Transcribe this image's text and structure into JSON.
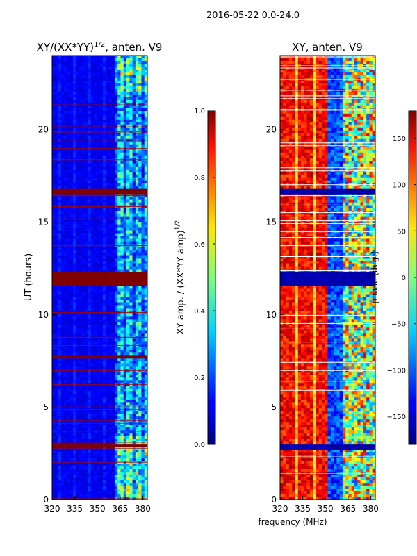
{
  "suptitle": "2016-05-22 0.0-24.0",
  "chart_data": [
    {
      "type": "heatmap",
      "title_main": "XY/(XX*YY)",
      "title_exp": "1/2",
      "title_suffix": ", anten. V9",
      "xlabel": "",
      "ylabel": "UT (hours)",
      "xlim": [
        320,
        383
      ],
      "ylim": [
        0,
        24
      ],
      "xticks": [
        320,
        335,
        350,
        365,
        380
      ],
      "yticks": [
        0,
        5,
        10,
        15,
        20
      ],
      "colorbar": {
        "label_main": "XY amp. / (XX*YY amp)",
        "label_exp": "1/2",
        "min": 0.0,
        "max": 1.0,
        "ticks": [
          "0.0",
          "0.2",
          "0.4",
          "0.6",
          "0.8",
          "1.0"
        ]
      },
      "saturated_bands": [
        {
          "from": 11.5,
          "to": 12.3
        },
        {
          "from": 16.5,
          "to": 16.75
        },
        {
          "from": 7.6,
          "to": 7.8
        },
        {
          "from": 2.85,
          "to": 2.95
        }
      ]
    },
    {
      "type": "heatmap",
      "title_main": "XY, anten. V9",
      "xlabel": "frequency (MHz)",
      "ylabel": "",
      "xlim": [
        320,
        383
      ],
      "ylim": [
        0,
        24
      ],
      "xticks": [
        320,
        335,
        350,
        365,
        380
      ],
      "yticks": [
        0,
        5,
        10,
        15,
        20
      ],
      "colorbar": {
        "label_main": "phase (deg.)",
        "min": -180,
        "max": 180,
        "ticks": [
          "−150",
          "−100",
          "−50",
          "0",
          "50",
          "100",
          "150"
        ]
      }
    }
  ]
}
